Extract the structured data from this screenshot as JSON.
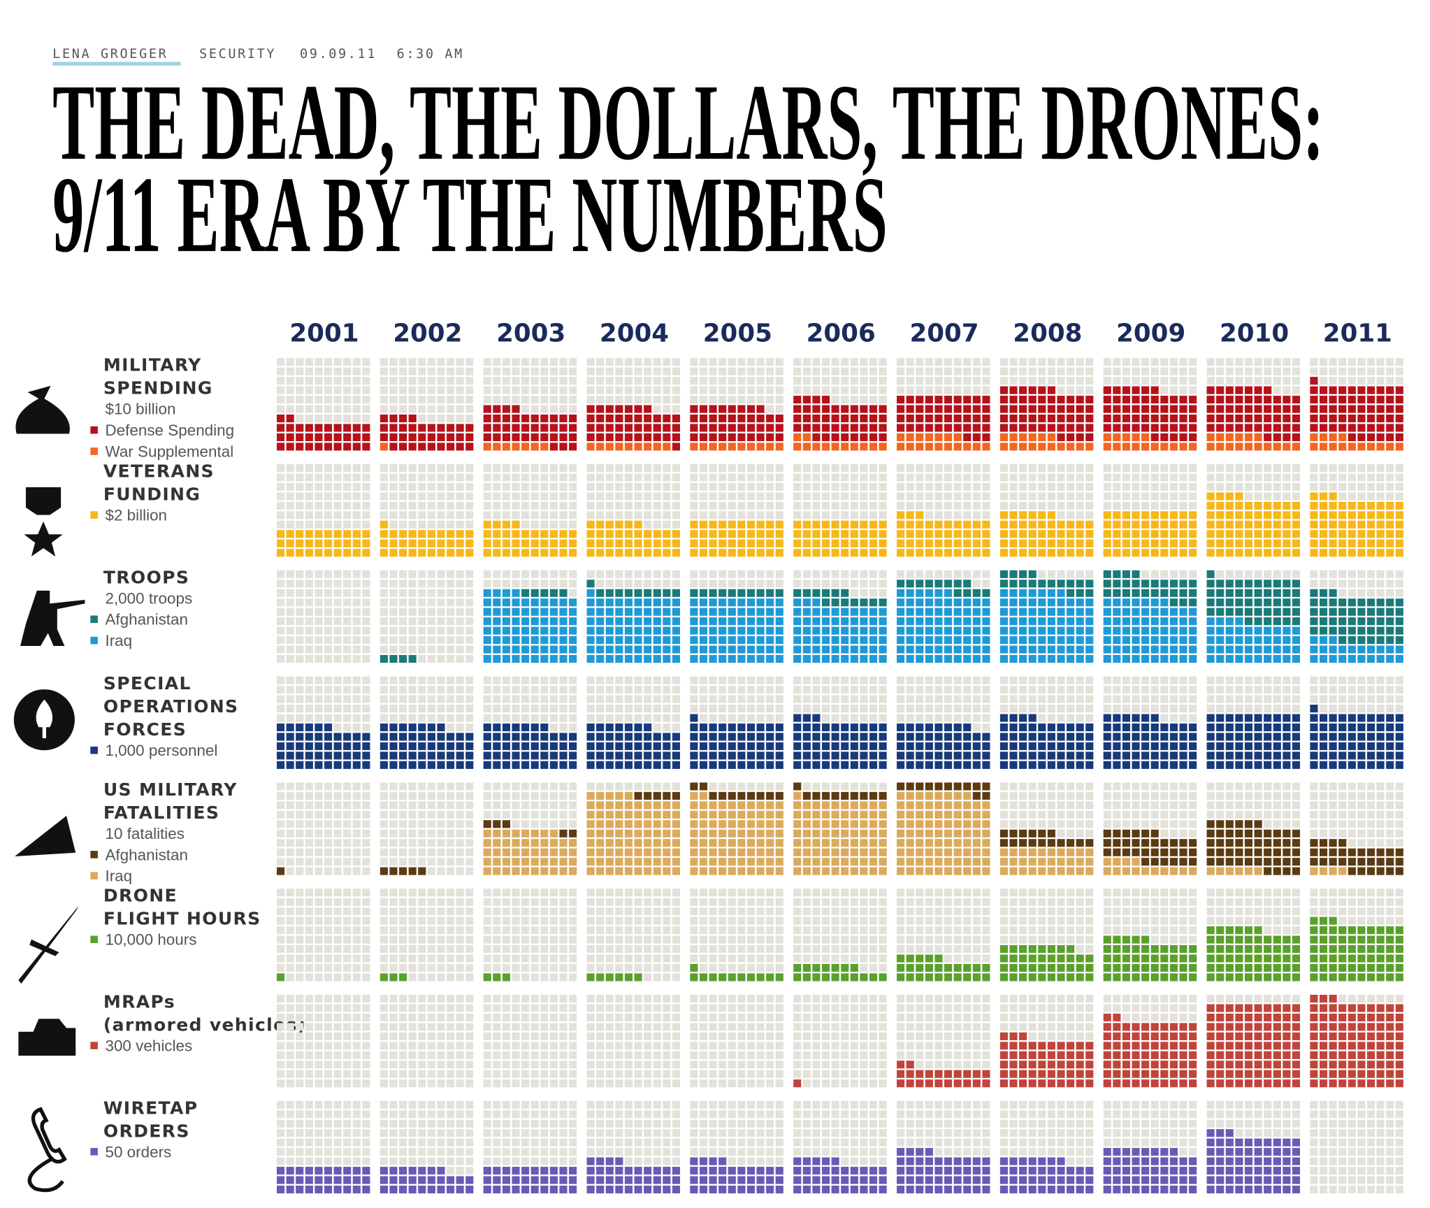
{
  "header": {
    "author": "LENA GROEGER",
    "section": "SECURITY",
    "date": "09.09.11",
    "time": "6:30 AM"
  },
  "chart_data": {
    "type": "waffle",
    "title": [
      "THE DEAD, THE DOLLARS, THE DRONES:",
      "9/11 ERA BY THE NUMBERS"
    ],
    "categories": [
      "2001",
      "2002",
      "2003",
      "2004",
      "2005",
      "2006",
      "2007",
      "2008",
      "2009",
      "2010",
      "2011"
    ],
    "empty_color": "#e2e1da",
    "panels": [
      {
        "title": [
          "MILITARY",
          "SPENDING"
        ],
        "unit": "$10 billion",
        "series": [
          {
            "name": "Defense Spending",
            "color": "#b5121b",
            "values": [
              32,
              33,
              37,
              38,
              38,
              42,
              43,
              50,
              51,
              51,
              57
            ]
          },
          {
            "name": "War Supplemental",
            "color": "#f26522",
            "values": [
              0,
              1,
              7,
              9,
              10,
              12,
              17,
              16,
              15,
              16,
              14
            ]
          }
        ]
      },
      {
        "title": [
          "VETERANS",
          "FUNDING"
        ],
        "series": [
          {
            "name": "$2 billion",
            "color": "#f7b718",
            "values": [
              30,
              31,
              34,
              36,
              40,
              40,
              43,
              46,
              50,
              64,
              63
            ]
          }
        ]
      },
      {
        "title": [
          "TROOPS"
        ],
        "unit": "2,000 troops",
        "series": [
          {
            "name": "Afghanistan",
            "color": "#1a7a7a",
            "values": [
              0,
              4,
              5,
              10,
              10,
              13,
              12,
              17,
              27,
              47,
              50
            ]
          },
          {
            "name": "Iraq",
            "color": "#1e9ad6",
            "values": [
              0,
              0,
              74,
              71,
              70,
              63,
              76,
              77,
              67,
              44,
              23
            ]
          }
        ]
      },
      {
        "title": [
          "SPECIAL",
          "OPERATIONS",
          "FORCES"
        ],
        "series": [
          {
            "name": "1,000 personnel",
            "color": "#173a7a",
            "values": [
              46,
              47,
              47,
              47,
              51,
              53,
              48,
              54,
              56,
              60,
              61
            ]
          }
        ]
      },
      {
        "title": [
          "US MILITARY",
          "FATALITIES"
        ],
        "unit": "10 fatalities",
        "series": [
          {
            "name": "Afghanistan",
            "color": "#5c3a12",
            "values": [
              1,
              5,
              5,
              5,
              10,
              10,
              12,
              16,
              32,
              50,
              30
            ]
          },
          {
            "name": "Iraq",
            "color": "#dcaa5c",
            "values": [
              0,
              0,
              48,
              85,
              82,
              81,
              88,
              30,
              14,
              6,
              4
            ]
          }
        ]
      },
      {
        "title": [
          "DRONE",
          "FLIGHT HOURS"
        ],
        "series": [
          {
            "name": "10,000 hours",
            "color": "#5aa02c",
            "values": [
              1,
              3,
              3,
              6,
              11,
              17,
              25,
              38,
              45,
              56,
              63
            ]
          }
        ]
      },
      {
        "title": [
          "MRAPs",
          "(armored vehicles)"
        ],
        "series": [
          {
            "name": "300 vehicles",
            "color": "#c0443a",
            "values": [
              0,
              0,
              0,
              0,
              0,
              1,
              22,
              53,
              72,
              90,
              93
            ]
          }
        ]
      },
      {
        "title": [
          "WIRETAP",
          "ORDERS"
        ],
        "series": [
          {
            "name": "50 orders",
            "color": "#6a5ab5",
            "values": [
              30,
              27,
              30,
              34,
              34,
              35,
              44,
              37,
              48,
              63,
              null
            ]
          }
        ]
      }
    ]
  }
}
